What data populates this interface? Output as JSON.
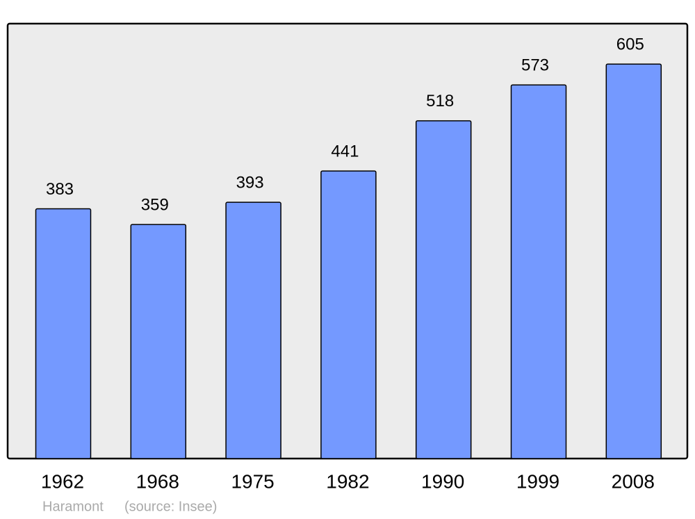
{
  "chart_data": {
    "type": "bar",
    "title": "Haramont",
    "source": "(source: Insee)",
    "categories": [
      "1962",
      "1968",
      "1975",
      "1982",
      "1990",
      "1999",
      "2008"
    ],
    "values": [
      383,
      359,
      393,
      441,
      518,
      573,
      605
    ],
    "color": "#7499ff",
    "ylim": [
      0,
      667
    ]
  }
}
